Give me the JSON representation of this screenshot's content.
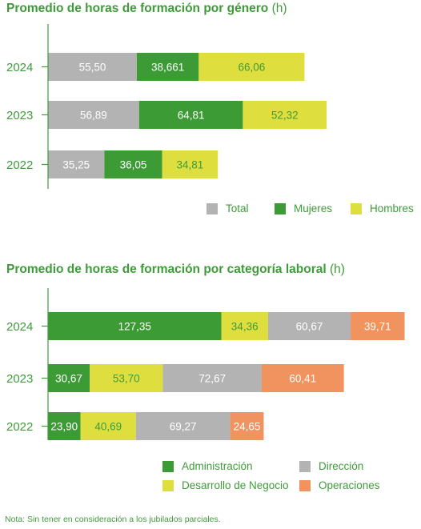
{
  "colors": {
    "total": "#b3b3b3",
    "mujeres": "#3d9b35",
    "hombres": "#dede3e",
    "administracion": "#3d9b35",
    "desarrollo": "#dede3e",
    "direccion": "#b3b3b3",
    "operaciones": "#f0935f",
    "accent": "#3f9b3a"
  },
  "chart_data": [
    {
      "type": "bar",
      "stacked": true,
      "orientation": "horizontal",
      "title": "Promedio de horas de formación por género",
      "unit": "(h)",
      "categories": [
        "2024",
        "2023",
        "2022"
      ],
      "series": [
        {
          "name": "Total",
          "values": [
            55.5,
            56.89,
            35.25
          ],
          "labels": [
            "55,50",
            "56,89",
            "35,25"
          ],
          "color_key": "total"
        },
        {
          "name": "Mujeres",
          "values": [
            38.661,
            64.81,
            36.05
          ],
          "labels": [
            "38,661",
            "64,81",
            "36,05"
          ],
          "color_key": "mujeres"
        },
        {
          "name": "Hombres",
          "values": [
            66.06,
            52.32,
            34.81
          ],
          "labels": [
            "66,06",
            "52,32",
            "34,81"
          ],
          "color_key": "hombres"
        }
      ],
      "legend": [
        "Total",
        "Mujeres",
        "Hombres"
      ],
      "legend_position": "bottom-right"
    },
    {
      "type": "bar",
      "stacked": true,
      "orientation": "horizontal",
      "title": "Promedio de horas de formación por categoría laboral",
      "unit": "(h)",
      "categories": [
        "2024",
        "2023",
        "2022"
      ],
      "series": [
        {
          "name": "Administración",
          "values": [
            127.35,
            30.67,
            23.9
          ],
          "labels": [
            "127,35",
            "30,67",
            "23,90"
          ],
          "color_key": "administracion"
        },
        {
          "name": "Desarrollo de Negocio",
          "values": [
            34.36,
            53.7,
            40.69
          ],
          "labels": [
            "34,36",
            "53,70",
            "40,69"
          ],
          "color_key": "desarrollo"
        },
        {
          "name": "Dirección",
          "values": [
            60.67,
            72.67,
            69.27
          ],
          "labels": [
            "60,67",
            "72,67",
            "69,27"
          ],
          "color_key": "direccion"
        },
        {
          "name": "Operaciones",
          "values": [
            39.71,
            60.41,
            24.65
          ],
          "labels": [
            "39,71",
            "60,41",
            "24,65"
          ],
          "color_key": "operaciones"
        }
      ],
      "legend": [
        "Administración",
        "Dirección",
        "Desarrollo de Negocio",
        "Operaciones"
      ],
      "legend_position": "bottom"
    }
  ],
  "note": "Nota: Sin tener en consideración a los jubilados parciales."
}
